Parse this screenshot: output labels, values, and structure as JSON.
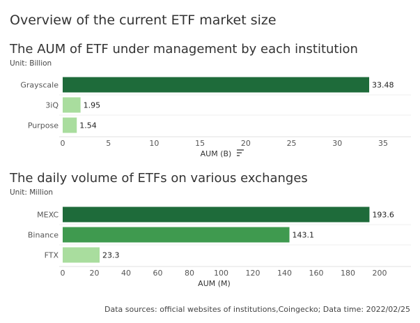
{
  "page": {
    "title": "Overview of the current ETF market size",
    "footer": "Data sources: official websites of institutions,Coingecko; Data time: 2022/02/25"
  },
  "chart_data": [
    {
      "type": "bar",
      "orientation": "horizontal",
      "title": "The AUM of ETF under management by each institution",
      "subtitle": "Unit: Billion",
      "xlabel": "AUM (B)",
      "categories": [
        "Grayscale",
        "3iQ",
        "Purpose"
      ],
      "values": [
        33.48,
        1.95,
        1.54
      ],
      "value_labels": [
        "33.48",
        "1.95",
        "1.54"
      ],
      "xlim": [
        0,
        35
      ],
      "xticks": [
        0,
        5,
        10,
        15,
        20,
        25,
        30,
        35
      ],
      "colors": [
        "#1e6b3a",
        "#a9dd9e",
        "#a9dd9e"
      ],
      "sort_icon": "sort-descending-icon"
    },
    {
      "type": "bar",
      "orientation": "horizontal",
      "title": "The daily volume of ETFs on various exchanges",
      "subtitle": "Unit: Million",
      "xlabel": "AUM (M)",
      "categories": [
        "MEXC",
        "Binance",
        "FTX"
      ],
      "values": [
        193.6,
        143.1,
        23.3
      ],
      "value_labels": [
        "193.6",
        "143.1",
        "23.3"
      ],
      "xlim": [
        0,
        200
      ],
      "xticks": [
        0,
        20,
        40,
        60,
        80,
        100,
        120,
        140,
        160,
        180,
        200
      ],
      "colors": [
        "#1e6b3a",
        "#3f9a4f",
        "#a9dd9e"
      ]
    }
  ]
}
